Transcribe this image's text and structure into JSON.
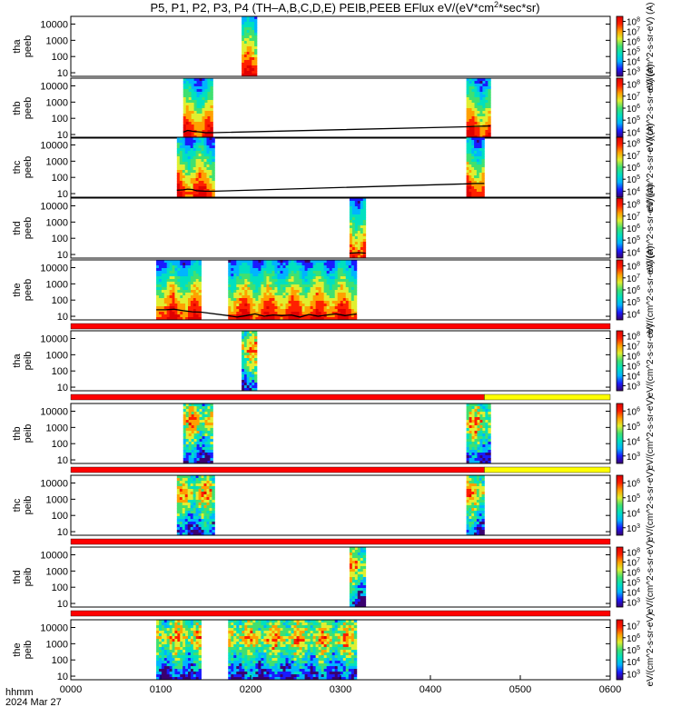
{
  "chart_data": {
    "type": "heatmap",
    "title": "P5, P1, P2, P3, P4 (TH-A,B,C,D,E) PEIB,PEEB EFlux eV/(eV*cm^2*sec*sr)",
    "title_parts": {
      "main": "P5, P1, P2, P3, P4 (TH–A,B,C,D,E) PEIB,PEEB EFlux eV/(eV*cm",
      "sup": "2",
      "tail": "*sec*sr)"
    },
    "xlabel": "hhmm",
    "date_label": "2024 Mar 27",
    "x_ticks": [
      "0000",
      "0100",
      "0200",
      "0300",
      "0400",
      "0500",
      "0600"
    ],
    "x_range_hours": [
      0,
      6
    ],
    "y_ticks": [
      "10",
      "100",
      "1000",
      "10000"
    ],
    "y_scale": "log",
    "y_range_eV": [
      6,
      30000
    ],
    "colorbar_label_electron": "eV/(cm^2-s-sr-eV) (A)",
    "colorbar_label_ion": "eV/(cm^2-s-sr-eV)",
    "colorscale": [
      "#3a0070",
      "#1a1aff",
      "#00b4ff",
      "#00e0c0",
      "#40e070",
      "#e0ef30",
      "#ffa000",
      "#ff2000",
      "#e00000"
    ],
    "flag_colors": {
      "bar": "#ff0000",
      "alt": "#ffff00"
    },
    "panels": [
      {
        "probe": "tha",
        "product": "peeb",
        "cb_ticks": [
          "3",
          "4",
          "5",
          "6",
          "7",
          "8"
        ],
        "intervals": [
          {
            "start": 1.9,
            "end": 2.07
          }
        ],
        "pot": []
      },
      {
        "probe": "thb",
        "product": "peeb",
        "cb_ticks": [
          "4",
          "5",
          "6",
          "7",
          "8"
        ],
        "intervals": [
          {
            "start": 1.25,
            "end": 1.58
          },
          {
            "start": 4.4,
            "end": 4.67
          }
        ],
        "pot": [
          [
            1.25,
            14
          ],
          [
            1.3,
            18
          ],
          [
            1.35,
            16
          ],
          [
            1.4,
            15
          ],
          [
            1.45,
            14
          ],
          [
            1.5,
            13
          ],
          [
            1.58,
            13
          ],
          [
            4.4,
            30
          ],
          [
            4.5,
            32
          ],
          [
            4.6,
            33
          ],
          [
            4.67,
            34
          ]
        ]
      },
      {
        "probe": "thc",
        "product": "peeb",
        "cb_ticks": [
          "4",
          "5",
          "6",
          "7",
          "8"
        ],
        "intervals": [
          {
            "start": 1.18,
            "end": 1.6
          },
          {
            "start": 4.4,
            "end": 4.6
          }
        ],
        "pot": [
          [
            1.18,
            16
          ],
          [
            1.25,
            17
          ],
          [
            1.3,
            19
          ],
          [
            1.35,
            18
          ],
          [
            1.4,
            15
          ],
          [
            1.5,
            14
          ],
          [
            1.6,
            14
          ],
          [
            4.4,
            40
          ],
          [
            4.5,
            42
          ],
          [
            4.6,
            42
          ]
        ]
      },
      {
        "probe": "thd",
        "product": "peeb",
        "cb_ticks": [
          "4",
          "5",
          "6",
          "7",
          "8"
        ],
        "intervals": [
          {
            "start": 3.1,
            "end": 3.28
          }
        ],
        "pot": [
          [
            3.1,
            12
          ],
          [
            3.2,
            13
          ],
          [
            3.28,
            12
          ]
        ]
      },
      {
        "probe": "the",
        "product": "peeb",
        "cb_ticks": [
          "4",
          "5",
          "6",
          "7",
          "8"
        ],
        "intervals": [
          {
            "start": 0.95,
            "end": 1.45
          },
          {
            "start": 1.75,
            "end": 3.18
          }
        ],
        "pot": [
          [
            0.95,
            25
          ],
          [
            1.05,
            25
          ],
          [
            1.15,
            27
          ],
          [
            1.25,
            22
          ],
          [
            1.35,
            19
          ],
          [
            1.45,
            18
          ],
          [
            1.75,
            11
          ],
          [
            1.85,
            9
          ],
          [
            1.95,
            11
          ],
          [
            2.05,
            14
          ],
          [
            2.15,
            10
          ],
          [
            2.25,
            12
          ],
          [
            2.35,
            11
          ],
          [
            2.45,
            12
          ],
          [
            2.55,
            9
          ],
          [
            2.65,
            13
          ],
          [
            2.75,
            10
          ],
          [
            2.85,
            12
          ],
          [
            2.95,
            14
          ],
          [
            3.05,
            11
          ],
          [
            3.18,
            14
          ]
        ]
      },
      {
        "probe": "tha",
        "product": "peib",
        "cb_ticks": [
          "3",
          "4",
          "5",
          "6",
          "7",
          "8"
        ],
        "intervals": [
          {
            "start": 1.9,
            "end": 2.07
          }
        ],
        "pot": []
      },
      {
        "probe": "thb",
        "product": "peib",
        "cb_ticks": [
          "3",
          "4",
          "5",
          "6"
        ],
        "intervals": [
          {
            "start": 1.25,
            "end": 1.58
          },
          {
            "start": 4.4,
            "end": 4.67
          }
        ],
        "pot": []
      },
      {
        "probe": "thc",
        "product": "peib",
        "cb_ticks": [
          "3",
          "4",
          "5",
          "6"
        ],
        "intervals": [
          {
            "start": 1.18,
            "end": 1.6
          },
          {
            "start": 4.4,
            "end": 4.6
          }
        ],
        "pot": []
      },
      {
        "probe": "thd",
        "product": "peib",
        "cb_ticks": [
          "3",
          "4",
          "5",
          "6",
          "7",
          "8"
        ],
        "intervals": [
          {
            "start": 3.1,
            "end": 3.28
          }
        ],
        "pot": []
      },
      {
        "probe": "the",
        "product": "peib",
        "cb_ticks": [
          "3",
          "4",
          "5",
          "6",
          "7"
        ],
        "intervals": [
          {
            "start": 0.95,
            "end": 1.45
          },
          {
            "start": 1.75,
            "end": 3.18
          }
        ],
        "pot": []
      }
    ],
    "flag_bars": [
      {
        "after_panel": 4,
        "segments": [
          {
            "start": 0,
            "end": 6,
            "color": "red"
          }
        ]
      },
      {
        "after_panel": 5,
        "segments": [
          {
            "start": 0,
            "end": 4.6,
            "color": "red"
          },
          {
            "start": 4.6,
            "end": 6,
            "color": "yellow"
          }
        ]
      },
      {
        "after_panel": 6,
        "segments": [
          {
            "start": 0,
            "end": 4.6,
            "color": "red"
          },
          {
            "start": 4.6,
            "end": 6,
            "color": "yellow"
          }
        ]
      },
      {
        "after_panel": 7,
        "segments": [
          {
            "start": 0,
            "end": 6,
            "color": "red"
          }
        ]
      },
      {
        "after_panel": 8,
        "segments": [
          {
            "start": 0,
            "end": 6,
            "color": "red"
          }
        ]
      }
    ]
  }
}
